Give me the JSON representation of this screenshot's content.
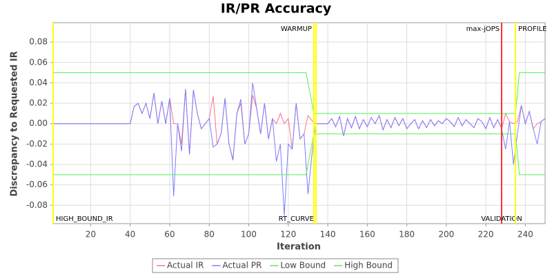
{
  "chart_data": {
    "type": "line",
    "title": "IR/PR Accuracy",
    "x_label": "Iteration",
    "y_label": "Discrepancy to Requested IR",
    "xlim": [
      1,
      250
    ],
    "ylim": [
      -0.098,
      0.099
    ],
    "xticks": [
      20,
      40,
      60,
      80,
      100,
      120,
      140,
      160,
      180,
      200,
      220,
      240
    ],
    "yticks": [
      -0.08,
      -0.06,
      -0.04,
      -0.02,
      {
        "value": 0,
        "label": "0.00"
      },
      0.02,
      0.04,
      0.06,
      0.08
    ],
    "grid": true,
    "legend": "bottom",
    "x": [
      1,
      40,
      42,
      44,
      46,
      48,
      50,
      52,
      54,
      56,
      58,
      60,
      62,
      64,
      66,
      68,
      70,
      72,
      74,
      76,
      78,
      80,
      82,
      84,
      86,
      88,
      90,
      92,
      94,
      96,
      98,
      100,
      102,
      104,
      106,
      108,
      110,
      112,
      114,
      116,
      118,
      120,
      122,
      124,
      126,
      128,
      130,
      132,
      134,
      136,
      138,
      140,
      142,
      144,
      146,
      148,
      150,
      152,
      154,
      156,
      158,
      160,
      162,
      164,
      166,
      168,
      170,
      172,
      174,
      176,
      178,
      180,
      182,
      184,
      186,
      188,
      190,
      192,
      194,
      196,
      198,
      200,
      202,
      204,
      206,
      208,
      210,
      212,
      214,
      216,
      218,
      220,
      222,
      224,
      226,
      228,
      230,
      232,
      234,
      236,
      238,
      240,
      242,
      244,
      246,
      248,
      250
    ],
    "series": [
      {
        "name": "Actual IR",
        "color": "#ff6f8a",
        "values": [
          0,
          0,
          0.017,
          0.02,
          0.01,
          0.02,
          0.005,
          0.03,
          0,
          0.022,
          0,
          0.025,
          0,
          0,
          -0.02,
          0.034,
          -0.03,
          0.033,
          0.01,
          -0.005,
          0,
          0.005,
          0.027,
          -0.02,
          -0.01,
          0.025,
          -0.02,
          -0.035,
          0.01,
          0.02,
          -0.02,
          -0.01,
          0.028,
          0.015,
          -0.01,
          0.02,
          -0.015,
          0.005,
          0,
          0.01,
          0,
          0.005,
          -0.025,
          0.02,
          -0.015,
          -0.01,
          0.008,
          0.003,
          0,
          0,
          0,
          0,
          0.005,
          -0.003,
          0.007,
          -0.012,
          0.005,
          -0.004,
          0.007,
          -0.005,
          0.004,
          -0.003,
          0.006,
          0,
          0.008,
          -0.006,
          0.004,
          -0.004,
          0.006,
          -0.002,
          0.005,
          -0.005,
          0,
          0.004,
          -0.005,
          0.003,
          -0.004,
          0.004,
          -0.002,
          0.003,
          0,
          0.005,
          0.002,
          -0.003,
          0.006,
          -0.002,
          0.004,
          0,
          -0.004,
          0.005,
          0.002,
          -0.005,
          0.006,
          -0.004,
          0.004,
          -0.005,
          0.01,
          0.002,
          0,
          0.002,
          0.018,
          0,
          0.012,
          -0.005,
          0,
          0.002,
          0.005
        ]
      },
      {
        "name": "Actual PR",
        "color": "#7b7bff",
        "values": [
          0,
          0,
          0.017,
          0.02,
          0.01,
          0.02,
          0.005,
          0.03,
          0,
          0.022,
          0,
          0.025,
          -0.071,
          0,
          -0.027,
          0.034,
          -0.03,
          0.033,
          0.01,
          -0.005,
          0,
          0.005,
          -0.023,
          -0.02,
          -0.01,
          0.025,
          -0.02,
          -0.036,
          0.01,
          0.024,
          -0.02,
          -0.01,
          0.04,
          0.015,
          -0.01,
          0.02,
          -0.015,
          0.005,
          -0.037,
          -0.02,
          -0.09,
          -0.02,
          -0.025,
          0.02,
          -0.015,
          -0.01,
          -0.069,
          -0.03,
          0,
          0,
          0,
          0,
          0.005,
          -0.003,
          0.007,
          -0.012,
          0.005,
          -0.004,
          0.007,
          -0.005,
          0.004,
          -0.003,
          0.006,
          0,
          0.008,
          -0.006,
          0.004,
          -0.004,
          0.006,
          -0.002,
          0.005,
          -0.005,
          0,
          0.004,
          -0.005,
          0.003,
          -0.004,
          0.004,
          -0.002,
          0.003,
          0,
          0.005,
          0.002,
          -0.003,
          0.006,
          -0.002,
          0.004,
          0,
          -0.004,
          0.005,
          0.002,
          -0.005,
          0.006,
          -0.004,
          0.004,
          -0.005,
          -0.025,
          0.002,
          -0.04,
          -0.01,
          0.018,
          0,
          0.012,
          -0.005,
          -0.02,
          0.002,
          0.005
        ]
      },
      {
        "name": "Low Bound",
        "color": "#55ee55",
        "x": [
          1,
          129,
          133,
          235,
          237,
          250
        ],
        "values": [
          -0.05,
          -0.05,
          -0.01,
          -0.01,
          -0.05,
          -0.05
        ]
      },
      {
        "name": "High Bound",
        "color": "#55ee55",
        "x": [
          1,
          129,
          133,
          235,
          237,
          250
        ],
        "values": [
          0.05,
          0.05,
          0.01,
          0.01,
          0.05,
          0.05
        ]
      }
    ],
    "markers": [
      {
        "x": 1,
        "label": "HIGH_BOUND_IR",
        "position": "bottom",
        "anchor": "start",
        "color": "#ffff00"
      },
      {
        "x": 133,
        "label": "WARMUP",
        "position": "top",
        "anchor": "end",
        "color": "#ffff00"
      },
      {
        "x": 134,
        "label": "RT_CURVE",
        "position": "bottom",
        "anchor": "end",
        "color": "#ffff00"
      },
      {
        "x": 228,
        "label": "max-jOPS",
        "position": "top",
        "anchor": "end",
        "color": "#ff3030"
      },
      {
        "x": 228,
        "label": "VALIDATION",
        "position": "bottom",
        "anchor": "middle",
        "color": "#ff3030"
      },
      {
        "x": 235,
        "label": "PROFILE",
        "position": "top",
        "anchor": "start",
        "color": "#ffff00"
      }
    ]
  }
}
